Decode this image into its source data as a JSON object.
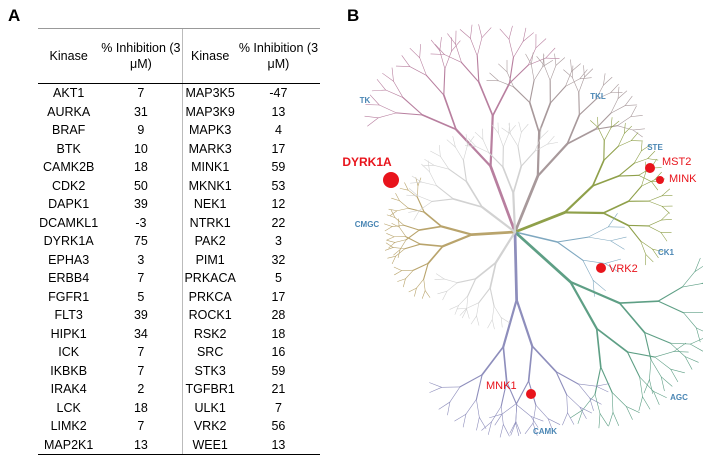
{
  "panel_a": {
    "label": "A"
  },
  "panel_b": {
    "label": "B"
  },
  "table": {
    "columns": [
      "Kinase",
      "% Inhibition (3 μM)",
      "Kinase",
      "% Inhibition (3 μM)"
    ],
    "rows": [
      [
        "AKT1",
        7,
        "MAP3K5",
        -47
      ],
      [
        "AURKA",
        31,
        "MAP3K9",
        13
      ],
      [
        "BRAF",
        9,
        "MAPK3",
        4
      ],
      [
        "BTK",
        10,
        "MARK3",
        17
      ],
      [
        "CAMK2B",
        18,
        "MINK1",
        59
      ],
      [
        "CDK2",
        50,
        "MKNK1",
        53
      ],
      [
        "DAPK1",
        39,
        "NEK1",
        12
      ],
      [
        "DCAMKL1",
        -3,
        "NTRK1",
        22
      ],
      [
        "DYRK1A",
        75,
        "PAK2",
        3
      ],
      [
        "EPHA3",
        3,
        "PIM1",
        32
      ],
      [
        "ERBB4",
        7,
        "PRKACA",
        5
      ],
      [
        "FGFR1",
        5,
        "PRKCA",
        17
      ],
      [
        "FLT3",
        39,
        "ROCK1",
        28
      ],
      [
        "HIPK1",
        34,
        "RSK2",
        18
      ],
      [
        "ICK",
        7,
        "SRC",
        16
      ],
      [
        "IKBKB",
        7,
        "STK3",
        59
      ],
      [
        "IRAK4",
        2,
        "TGFBR1",
        21
      ],
      [
        "LCK",
        18,
        "ULK1",
        7
      ],
      [
        "LIMK2",
        7,
        "VRK2",
        56
      ],
      [
        "MAP2K1",
        13,
        "WEE1",
        13
      ]
    ]
  },
  "tree": {
    "groups": [
      "TK",
      "TKL",
      "STE",
      "CK1",
      "AGC",
      "CAMK",
      "CMGC"
    ],
    "highlights": [
      "DYRK1A",
      "MST2",
      "MINK",
      "VRK2",
      "MNK1"
    ]
  }
}
